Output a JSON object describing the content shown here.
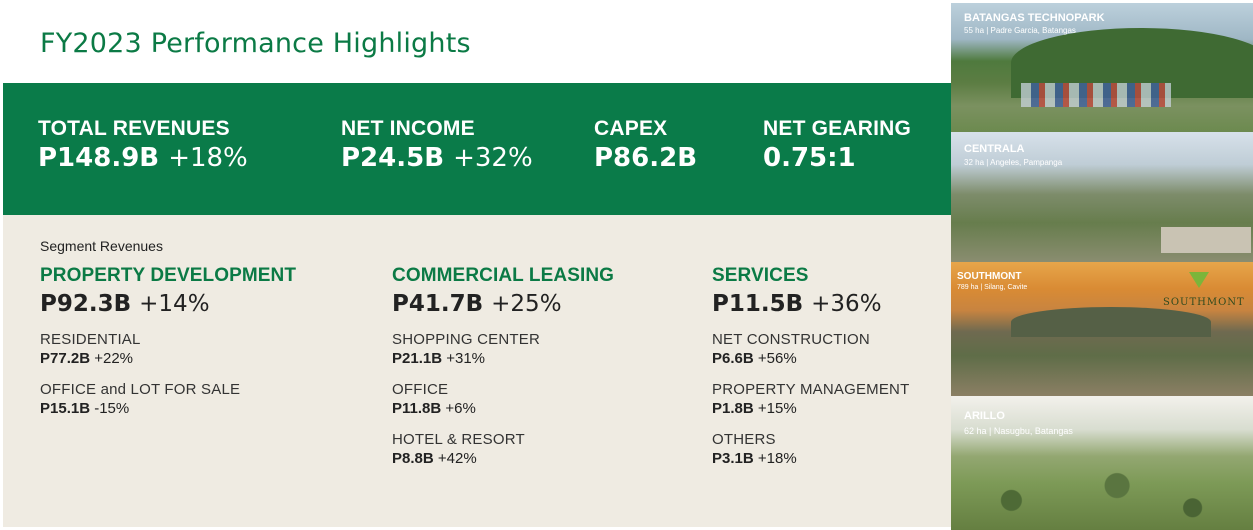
{
  "title": "FY2023 Performance Highlights",
  "kpis": [
    {
      "label": "TOTAL REVENUES",
      "value": "P148.9B",
      "change": "+18%"
    },
    {
      "label": "NET INCOME",
      "value": "P24.5B",
      "change": "+32%"
    },
    {
      "label": "CAPEX",
      "value": "P86.2B",
      "change": ""
    },
    {
      "label": "NET GEARING",
      "value": "0.75:1",
      "change": ""
    }
  ],
  "segments_title": "Segment Revenues",
  "segments": [
    {
      "head": "PROPERTY DEVELOPMENT",
      "value": "P92.3B",
      "change": "+14%",
      "items": [
        {
          "label": "RESIDENTIAL",
          "value": "P77.2B",
          "change": "+22%"
        },
        {
          "label": "OFFICE and LOT FOR SALE",
          "value": "P15.1B",
          "change": "-15%"
        }
      ]
    },
    {
      "head": "COMMERCIAL LEASING",
      "value": "P41.7B",
      "change": "+25%",
      "items": [
        {
          "label": "SHOPPING CENTER",
          "value": "P21.1B",
          "change": "+31%"
        },
        {
          "label": "OFFICE",
          "value": "P11.8B",
          "change": "+6%"
        },
        {
          "label": "HOTEL & RESORT",
          "value": "P8.8B",
          "change": "+42%"
        }
      ]
    },
    {
      "head": "SERVICES",
      "value": "P11.5B",
      "change": "+36%",
      "items": [
        {
          "label": "NET CONSTRUCTION",
          "value": "P6.6B",
          "change": "+56%"
        },
        {
          "label": "PROPERTY MANAGEMENT",
          "value": "P1.8B",
          "change": "+15%"
        },
        {
          "label": "OTHERS",
          "value": "P3.1B",
          "change": "+18%"
        }
      ]
    }
  ],
  "photos": [
    {
      "name": "BATANGAS TECHNOPARK",
      "sub": "55 ha | Padre Garcia, Batangas"
    },
    {
      "name": "CENTRALA",
      "sub": "32 ha | Angeles, Pampanga"
    },
    {
      "name": "SOUTHMONT",
      "sub": "789 ha | Silang, Cavite",
      "logo": "SOUTHMONT"
    },
    {
      "name": "ARILLO",
      "sub": "62 ha | Nasugbu, Batangas"
    }
  ],
  "colors": {
    "brand_green": "#0a7b49",
    "panel_beige": "#efebe2"
  }
}
